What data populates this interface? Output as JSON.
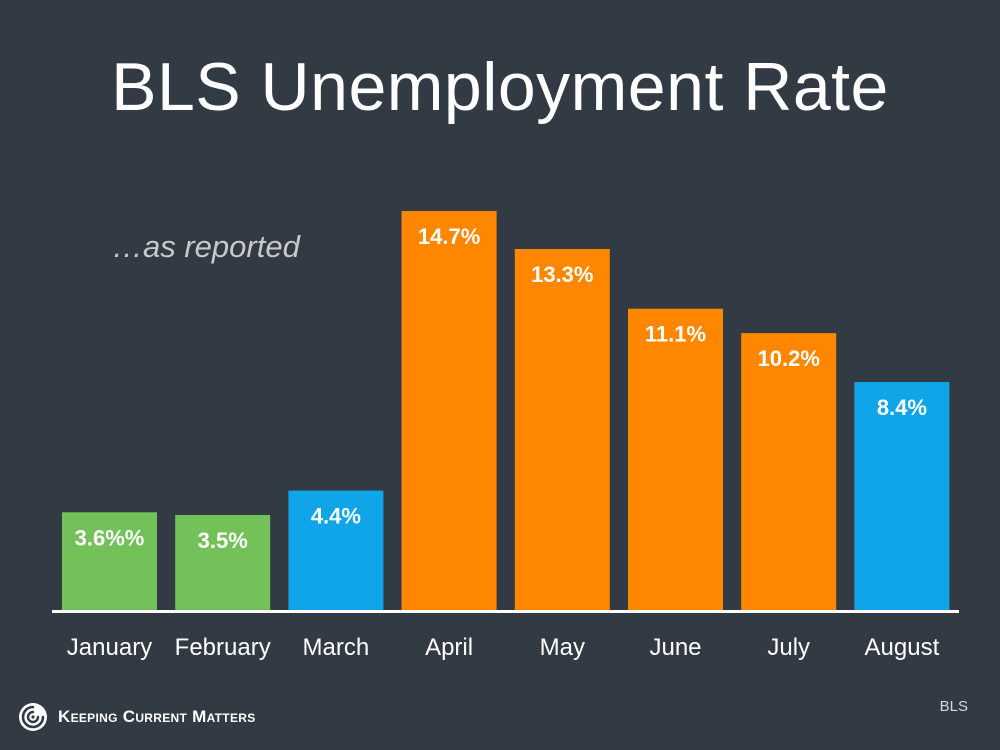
{
  "title": "BLS Unemployment Rate",
  "subtitle": "…as reported",
  "brand": {
    "name": "Keeping Current Matters",
    "icon": "kcm-spiral-logo"
  },
  "source": "BLS",
  "colors": {
    "background": "#323a44",
    "green": "#74c15a",
    "blue": "#10a5e8",
    "orange": "#ff8700",
    "axis": "#ffffff"
  },
  "chart_data": {
    "type": "bar",
    "title": "BLS Unemployment Rate",
    "subtitle": "…as reported",
    "xlabel": "",
    "ylabel": "",
    "categories": [
      "January",
      "February",
      "March",
      "April",
      "May",
      "June",
      "July",
      "August"
    ],
    "values": [
      3.6,
      3.5,
      4.4,
      14.7,
      13.3,
      11.1,
      10.2,
      8.4
    ],
    "data_labels": [
      "3.6%%",
      "3.5%",
      "4.4%",
      "14.7%",
      "13.3%",
      "11.1%",
      "10.2%",
      "8.4%"
    ],
    "bar_colors": [
      "#74c15a",
      "#74c15a",
      "#10a5e8",
      "#ff8700",
      "#ff8700",
      "#ff8700",
      "#ff8700",
      "#10a5e8"
    ],
    "ylim": [
      0,
      14.7
    ],
    "grid": false,
    "legend": "none"
  }
}
